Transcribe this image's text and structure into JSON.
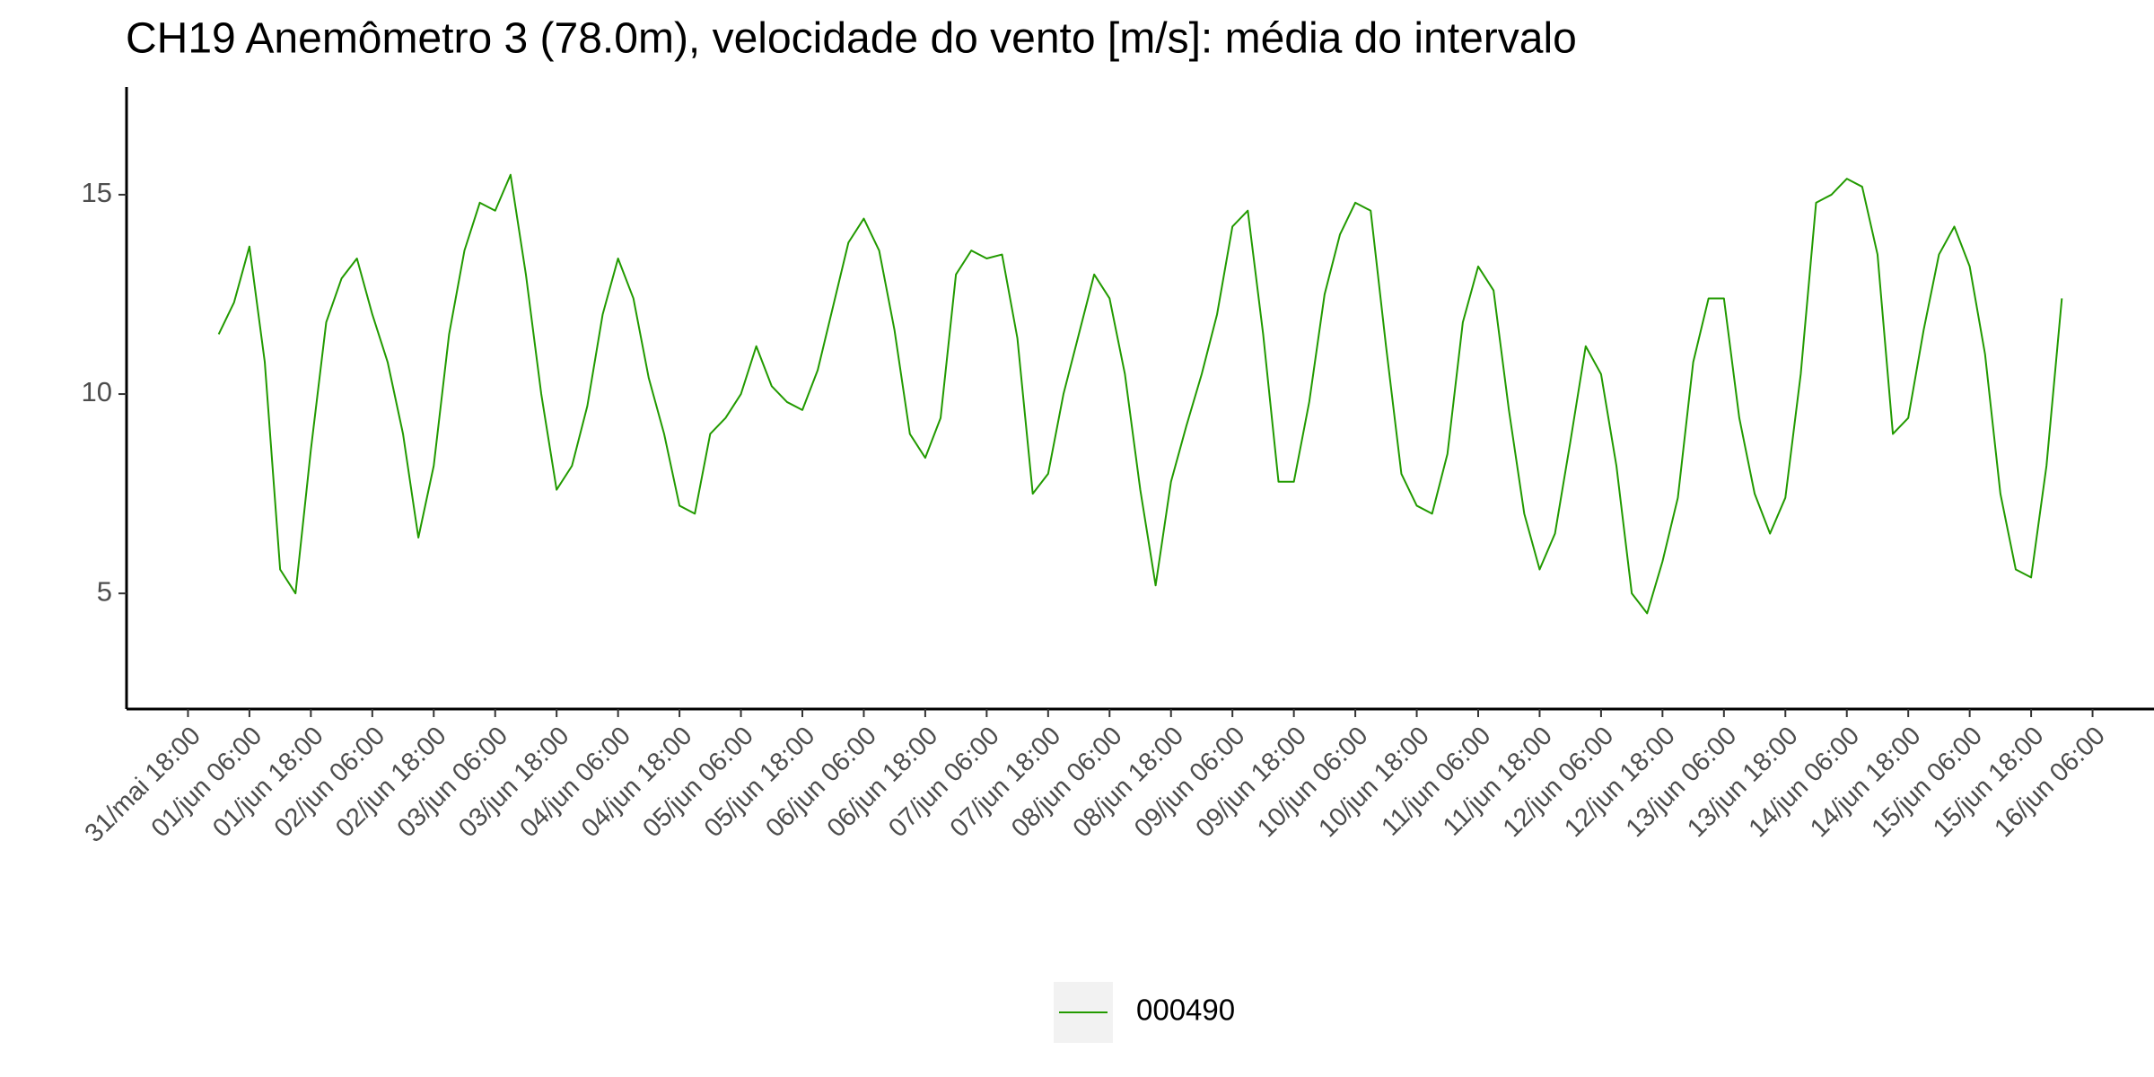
{
  "chart_data": {
    "type": "line",
    "title": "CH19 Anemômetro 3 (78.0m), velocidade do vento [m/s]: média do intervalo",
    "x": [
      "01/jun 00:00",
      "01/jun 03:00",
      "01/jun 06:00",
      "01/jun 09:00",
      "01/jun 12:00",
      "01/jun 15:00",
      "01/jun 18:00",
      "01/jun 21:00",
      "02/jun 00:00",
      "02/jun 03:00",
      "02/jun 06:00",
      "02/jun 09:00",
      "02/jun 12:00",
      "02/jun 15:00",
      "02/jun 18:00",
      "02/jun 21:00",
      "03/jun 00:00",
      "03/jun 03:00",
      "03/jun 06:00",
      "03/jun 09:00",
      "03/jun 12:00",
      "03/jun 15:00",
      "03/jun 18:00",
      "03/jun 21:00",
      "04/jun 00:00",
      "04/jun 03:00",
      "04/jun 06:00",
      "04/jun 09:00",
      "04/jun 12:00",
      "04/jun 15:00",
      "04/jun 18:00",
      "04/jun 21:00",
      "05/jun 00:00",
      "05/jun 03:00",
      "05/jun 06:00",
      "05/jun 09:00",
      "05/jun 12:00",
      "05/jun 15:00",
      "05/jun 18:00",
      "05/jun 21:00",
      "06/jun 00:00",
      "06/jun 03:00",
      "06/jun 06:00",
      "06/jun 09:00",
      "06/jun 12:00",
      "06/jun 15:00",
      "06/jun 18:00",
      "06/jun 21:00",
      "07/jun 00:00",
      "07/jun 03:00",
      "07/jun 06:00",
      "07/jun 09:00",
      "07/jun 12:00",
      "07/jun 15:00",
      "07/jun 18:00",
      "07/jun 21:00",
      "08/jun 00:00",
      "08/jun 03:00",
      "08/jun 06:00",
      "08/jun 09:00",
      "08/jun 12:00",
      "08/jun 15:00",
      "08/jun 18:00",
      "08/jun 21:00",
      "09/jun 00:00",
      "09/jun 03:00",
      "09/jun 06:00",
      "09/jun 09:00",
      "09/jun 12:00",
      "09/jun 15:00",
      "09/jun 18:00",
      "09/jun 21:00",
      "10/jun 00:00",
      "10/jun 03:00",
      "10/jun 06:00",
      "10/jun 09:00",
      "10/jun 12:00",
      "10/jun 15:00",
      "10/jun 18:00",
      "10/jun 21:00",
      "11/jun 00:00",
      "11/jun 03:00",
      "11/jun 06:00",
      "11/jun 09:00",
      "11/jun 12:00",
      "11/jun 15:00",
      "11/jun 18:00",
      "11/jun 21:00",
      "12/jun 00:00",
      "12/jun 03:00",
      "12/jun 06:00",
      "12/jun 09:00",
      "12/jun 12:00",
      "12/jun 15:00",
      "12/jun 18:00",
      "12/jun 21:00",
      "13/jun 00:00",
      "13/jun 03:00",
      "13/jun 06:00",
      "13/jun 09:00",
      "13/jun 12:00",
      "13/jun 15:00",
      "13/jun 18:00",
      "13/jun 21:00",
      "14/jun 00:00",
      "14/jun 03:00",
      "14/jun 06:00",
      "14/jun 09:00",
      "14/jun 12:00",
      "14/jun 15:00",
      "14/jun 18:00",
      "14/jun 21:00",
      "15/jun 00:00",
      "15/jun 03:00",
      "15/jun 06:00",
      "15/jun 09:00",
      "15/jun 12:00",
      "15/jun 15:00",
      "15/jun 18:00",
      "15/jun 21:00",
      "16/jun 00:00"
    ],
    "series": [
      {
        "name": "000490",
        "color": "#229a00",
        "values": [
          11.5,
          12.3,
          13.7,
          10.8,
          5.6,
          5.0,
          8.6,
          11.8,
          12.9,
          13.4,
          12.0,
          10.8,
          9.0,
          6.4,
          8.2,
          11.5,
          13.6,
          14.8,
          14.6,
          15.5,
          13.0,
          10.0,
          7.6,
          8.2,
          9.7,
          12.0,
          13.4,
          12.4,
          10.4,
          9.0,
          7.2,
          7.0,
          9.0,
          9.4,
          10.0,
          11.2,
          10.2,
          9.8,
          9.6,
          10.6,
          12.2,
          13.8,
          14.4,
          13.6,
          11.6,
          9.0,
          8.4,
          9.4,
          13.0,
          13.6,
          13.4,
          13.5,
          11.4,
          7.5,
          8.0,
          10.0,
          11.5,
          13.0,
          12.4,
          10.5,
          7.6,
          5.2,
          7.8,
          9.2,
          10.5,
          12.0,
          14.2,
          14.6,
          11.5,
          7.8,
          7.8,
          9.8,
          12.5,
          14.0,
          14.8,
          14.6,
          11.2,
          8.0,
          7.2,
          7.0,
          8.5,
          11.8,
          13.2,
          12.6,
          9.6,
          7.0,
          5.6,
          6.5,
          8.8,
          11.2,
          10.5,
          8.2,
          5.0,
          4.5,
          5.8,
          7.4,
          10.8,
          12.4,
          12.4,
          9.4,
          7.5,
          6.5,
          7.4,
          10.5,
          14.8,
          15.0,
          15.4,
          15.2,
          13.5,
          9.0,
          9.4,
          11.6,
          13.5,
          14.2,
          13.2,
          11.0,
          7.5,
          5.6,
          5.4,
          8.2,
          12.4
        ]
      }
    ],
    "xlim": [
      "31/mai 06:00",
      "16/jun 18:00"
    ],
    "xticks": [
      "31/mai 18:00",
      "01/jun 06:00",
      "01/jun 18:00",
      "02/jun 06:00",
      "02/jun 18:00",
      "03/jun 06:00",
      "03/jun 18:00",
      "04/jun 06:00",
      "04/jun 18:00",
      "05/jun 06:00",
      "05/jun 18:00",
      "06/jun 06:00",
      "06/jun 18:00",
      "07/jun 06:00",
      "07/jun 18:00",
      "08/jun 06:00",
      "08/jun 18:00",
      "09/jun 06:00",
      "09/jun 18:00",
      "10/jun 06:00",
      "10/jun 18:00",
      "11/jun 06:00",
      "11/jun 18:00",
      "12/jun 06:00",
      "12/jun 18:00",
      "13/jun 06:00",
      "13/jun 18:00",
      "14/jun 06:00",
      "14/jun 18:00",
      "15/jun 06:00",
      "15/jun 18:00",
      "16/jun 06:00"
    ],
    "ylim": [
      2.1,
      17.7
    ],
    "yticks": [
      5,
      10,
      15
    ],
    "legend": "bottom"
  }
}
